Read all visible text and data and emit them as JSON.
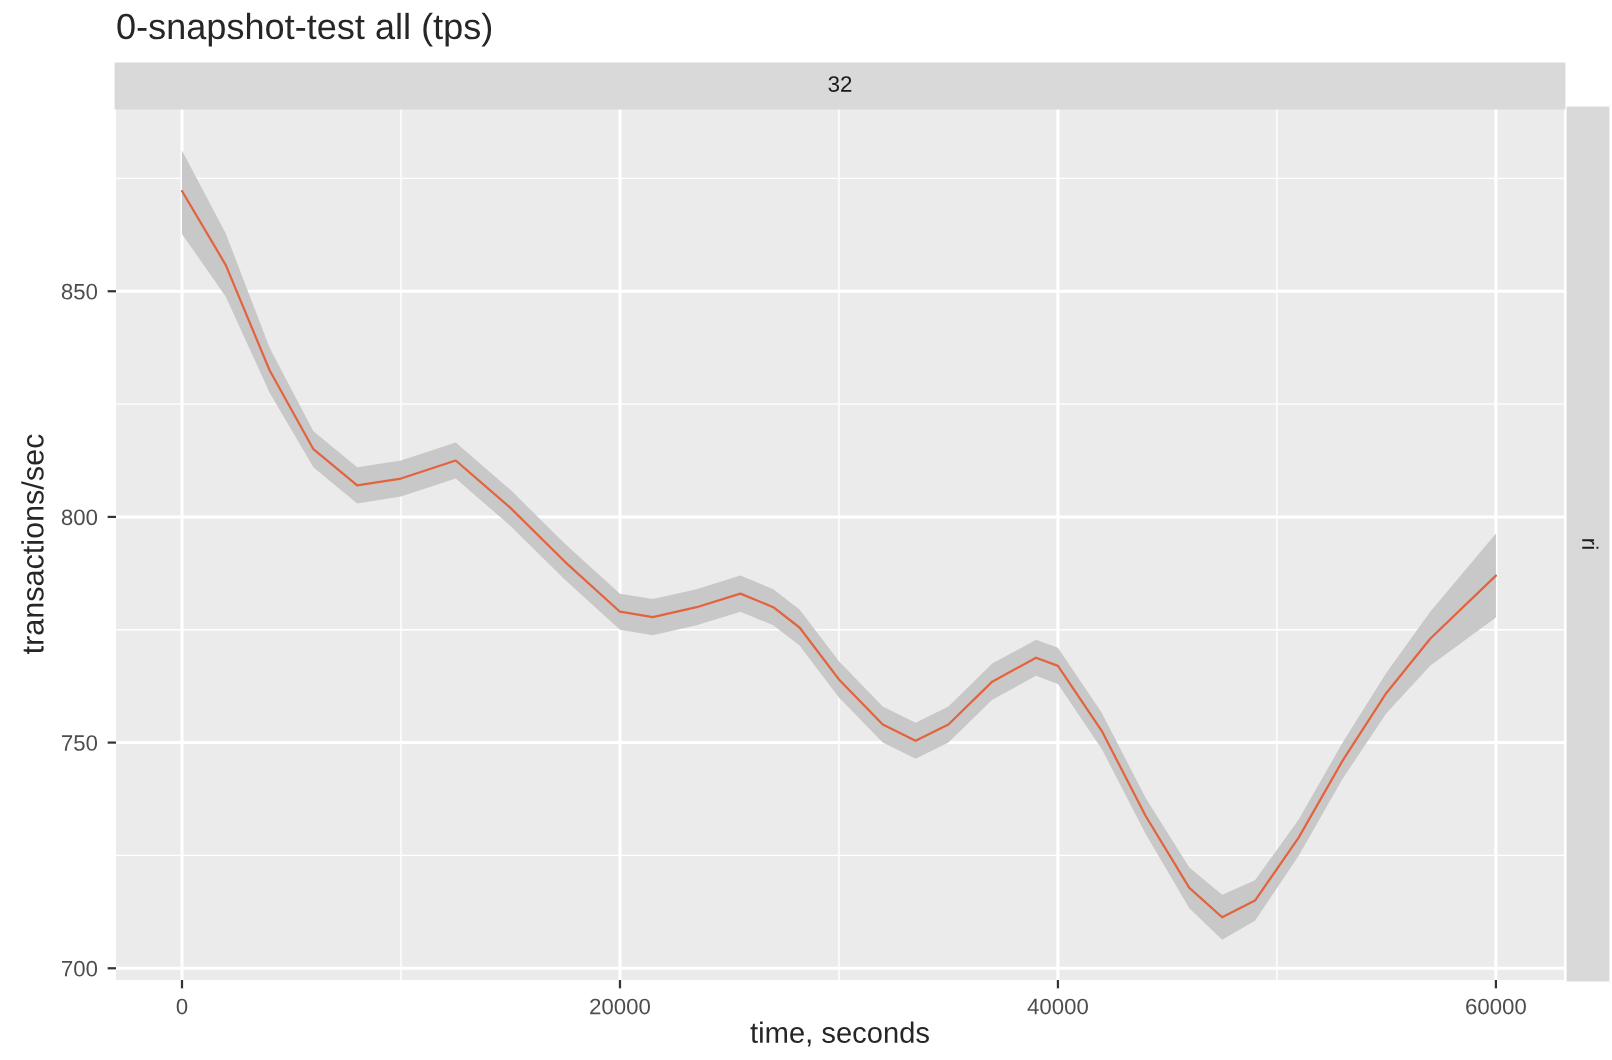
{
  "chart_data": {
    "type": "line",
    "title": "0-snapshot-test all (tps)",
    "xlabel": "time, seconds",
    "ylabel": "transactions/sec",
    "annotations": [
      "32",
      "ri"
    ],
    "xlim": [
      -3014,
      63110
    ],
    "ylim": [
      697.4,
      890.6
    ],
    "xticks": [
      0,
      20000,
      40000,
      60000
    ],
    "yticks": [
      700,
      750,
      800,
      850
    ],
    "grid": true,
    "series": [
      {
        "color": "#e3633f",
        "x": [
          0,
          2000,
          4000,
          6000,
          8000,
          10000,
          12500,
          15000,
          17500,
          20000,
          21500,
          23500,
          25500,
          27000,
          28200,
          30000,
          32000,
          33500,
          35000,
          37000,
          39000,
          40000,
          42000,
          44000,
          46000,
          47500,
          49000,
          51000,
          53000,
          55000,
          57000,
          60000
        ],
        "values": [
          872.2,
          855.8,
          832.5,
          815,
          807,
          808.5,
          812.5,
          802,
          790,
          779,
          777.8,
          780,
          783,
          780,
          775.5,
          764,
          754,
          750.4,
          754,
          763.5,
          768.8,
          767,
          752.6,
          733.8,
          717.8,
          711.3,
          715,
          729,
          746,
          761,
          773,
          787
        ],
        "lower": [
          862.7,
          848.8,
          827.5,
          811,
          803,
          804.5,
          808.5,
          798,
          786,
          775,
          773.8,
          776,
          779,
          776,
          771.5,
          760,
          750,
          746.4,
          750,
          759.5,
          764.8,
          763,
          748.6,
          729.8,
          713.3,
          706.3,
          710.5,
          725,
          742,
          756.5,
          767,
          777.7
        ],
        "upper": [
          881.2,
          862.8,
          837.5,
          819,
          811,
          812.5,
          816.5,
          806,
          794,
          783,
          781.8,
          784,
          787,
          784,
          779.5,
          768,
          758,
          754.4,
          758,
          767.5,
          772.8,
          771,
          756.6,
          737.8,
          722.3,
          716.3,
          719.5,
          733,
          750,
          765.5,
          779,
          796.3
        ]
      }
    ]
  }
}
